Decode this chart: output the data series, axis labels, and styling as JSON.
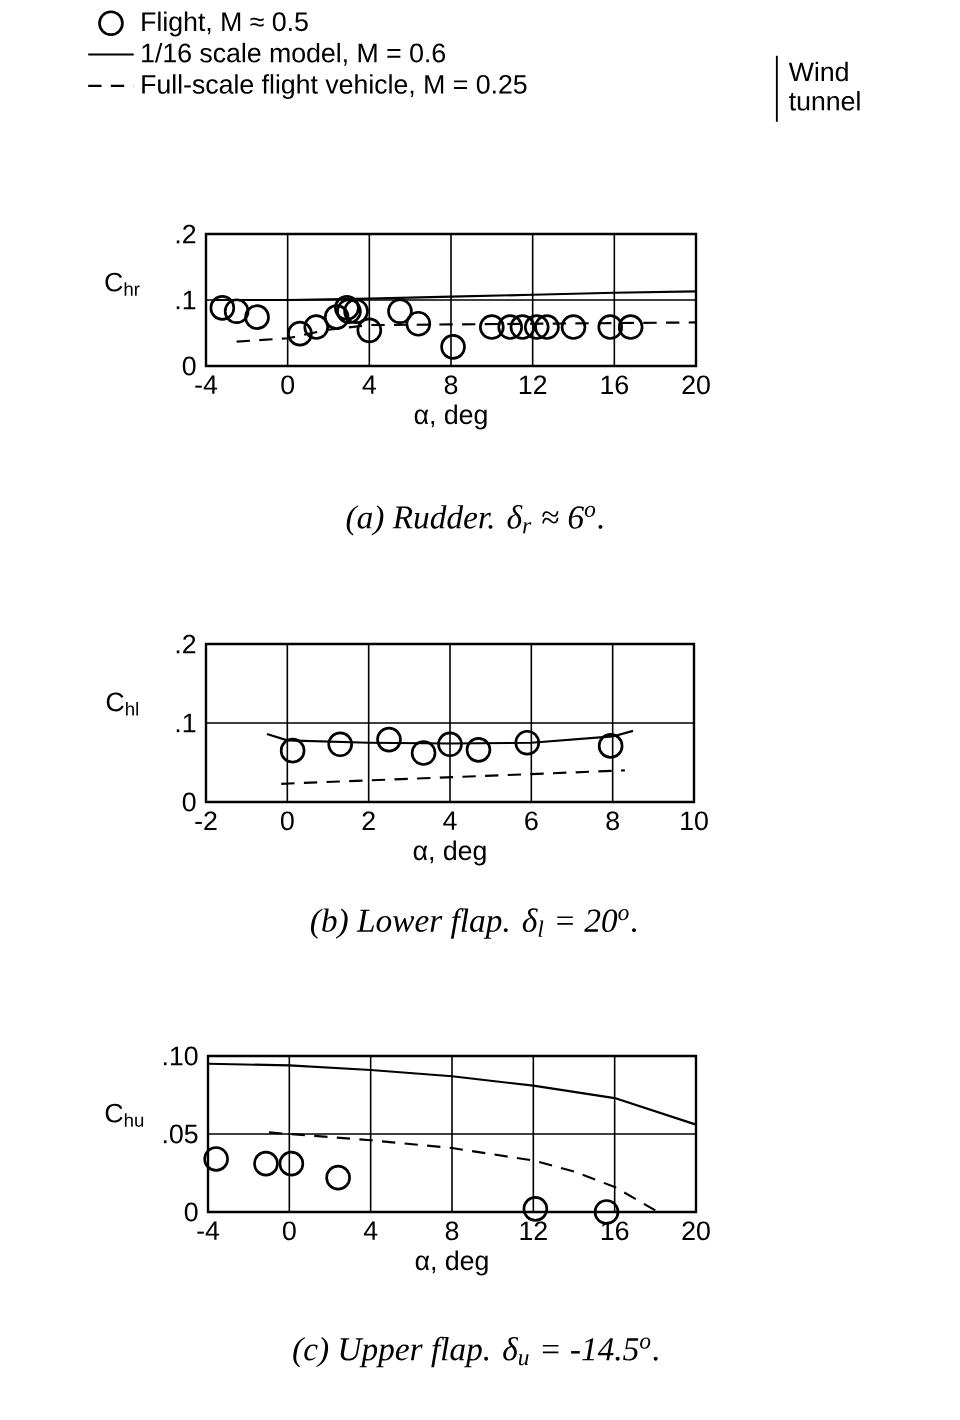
{
  "chart_data": [
    {
      "type": "line",
      "title": "(a) Rudder.  δ$_{r}$ ≈ 6$^{o}$.",
      "xlabel": "α, deg",
      "ylabel": "C$_{hr}$",
      "xlim": [
        -4,
        20
      ],
      "ylim": [
        0,
        0.2
      ],
      "xticks": [
        -4,
        0,
        4,
        8,
        12,
        16,
        20
      ],
      "yticks": [
        {
          "value": 0,
          "label": "0"
        },
        {
          "value": 0.1,
          "label": ".1"
        },
        {
          "value": 0.2,
          "label": ".2"
        }
      ],
      "grid": true,
      "legend": "top",
      "annotations": [
        "Wind tunnel"
      ],
      "series": [
        {
          "name": "Flight,  M ≈ 0.5",
          "type": "scatter",
          "marker": "circle",
          "color": "#000000",
          "x": [
            -3.2,
            -2.5,
            -1.5,
            0.6,
            1.4,
            2.4,
            2.9,
            3.0,
            3.35,
            4.0,
            5.5,
            6.4,
            8.1,
            10.0,
            10.9,
            11.5,
            12.2,
            12.7,
            14.0,
            15.8,
            16.8
          ],
          "values": [
            0.088,
            0.083,
            0.074,
            0.049,
            0.059,
            0.074,
            0.088,
            0.083,
            0.083,
            0.054,
            0.083,
            0.064,
            0.029,
            0.059,
            0.059,
            0.059,
            0.059,
            0.059,
            0.059,
            0.059,
            0.059
          ]
        },
        {
          "name": "1/16 scale model,  M = 0.6",
          "marker": "none",
          "line_style": "solid",
          "color": "#000000",
          "x": [
            -3.5,
            0,
            4,
            8,
            12,
            16,
            20
          ],
          "values": [
            0.1,
            0.1,
            0.102,
            0.105,
            0.108,
            0.111,
            0.113
          ]
        },
        {
          "name": "Full-scale flight vehicle,  M = 0.25",
          "marker": "none",
          "line_style": "dashed",
          "color": "#000000",
          "x": [
            -2.5,
            0,
            2,
            4,
            8,
            12,
            16,
            20
          ],
          "values": [
            0.037,
            0.042,
            0.055,
            0.062,
            0.063,
            0.064,
            0.065,
            0.066
          ]
        }
      ]
    },
    {
      "type": "line",
      "title": "(b) Lower flap.    δ$_{l}$  = 20$^{o}$.",
      "xlabel": "α, deg",
      "ylabel": "C$_{hl}$",
      "xlim": [
        -2,
        10
      ],
      "ylim": [
        0,
        0.2
      ],
      "xticks": [
        -2,
        0,
        2,
        4,
        6,
        8,
        10
      ],
      "yticks": [
        {
          "value": 0,
          "label": "0"
        },
        {
          "value": 0.1,
          "label": ".1"
        },
        {
          "value": 0.2,
          "label": ".2"
        }
      ],
      "grid": true,
      "series": [
        {
          "type": "scatter",
          "marker": "circle",
          "color": "#000000",
          "x": [
            0.13,
            1.3,
            2.5,
            3.35,
            4.0,
            4.7,
            5.9,
            7.95
          ],
          "values": [
            0.065,
            0.073,
            0.079,
            0.062,
            0.073,
            0.066,
            0.075,
            0.071
          ]
        },
        {
          "marker": "none",
          "line_style": "solid",
          "color": "#000000",
          "x": [
            -0.5,
            0,
            2,
            4,
            6,
            8,
            8.5
          ],
          "values": [
            0.086,
            0.078,
            0.075,
            0.074,
            0.075,
            0.083,
            0.09
          ]
        },
        {
          "marker": "none",
          "line_style": "dashed",
          "color": "#000000",
          "x": [
            -0.15,
            8.3
          ],
          "values": [
            0.023,
            0.04
          ]
        }
      ]
    },
    {
      "type": "line",
      "title": "(c) Upper flap.   δ$_{u}$ = -14.5$^{o}$.",
      "xlabel": "α, deg",
      "ylabel": "C$_{hu}$",
      "xlim": [
        -4,
        20
      ],
      "ylim": [
        0,
        0.1
      ],
      "xticks": [
        -4,
        0,
        4,
        8,
        12,
        16,
        20
      ],
      "yticks": [
        {
          "value": 0,
          "label": "0"
        },
        {
          "value": 0.05,
          "label": ".05"
        },
        {
          "value": 0.1,
          "label": ".10"
        }
      ],
      "grid": true,
      "series": [
        {
          "type": "scatter",
          "marker": "circle",
          "color": "#000000",
          "x": [
            -3.6,
            -1.15,
            0.1,
            2.4,
            12.1,
            15.6
          ],
          "values": [
            0.034,
            0.031,
            0.031,
            0.022,
            0.002,
            0
          ]
        },
        {
          "marker": "none",
          "line_style": "solid",
          "color": "#000000",
          "x": [
            -4,
            0,
            4,
            8,
            12,
            16,
            20
          ],
          "values": [
            0.095,
            0.094,
            0.091,
            0.087,
            0.081,
            0.073,
            0.056
          ]
        },
        {
          "marker": "none",
          "line_style": "dashed",
          "color": "#000000",
          "x": [
            -1,
            4,
            8,
            12,
            14,
            16,
            18
          ],
          "values": [
            0.051,
            0.046,
            0.041,
            0.033,
            0.026,
            0.016,
            0.001
          ]
        }
      ]
    }
  ]
}
